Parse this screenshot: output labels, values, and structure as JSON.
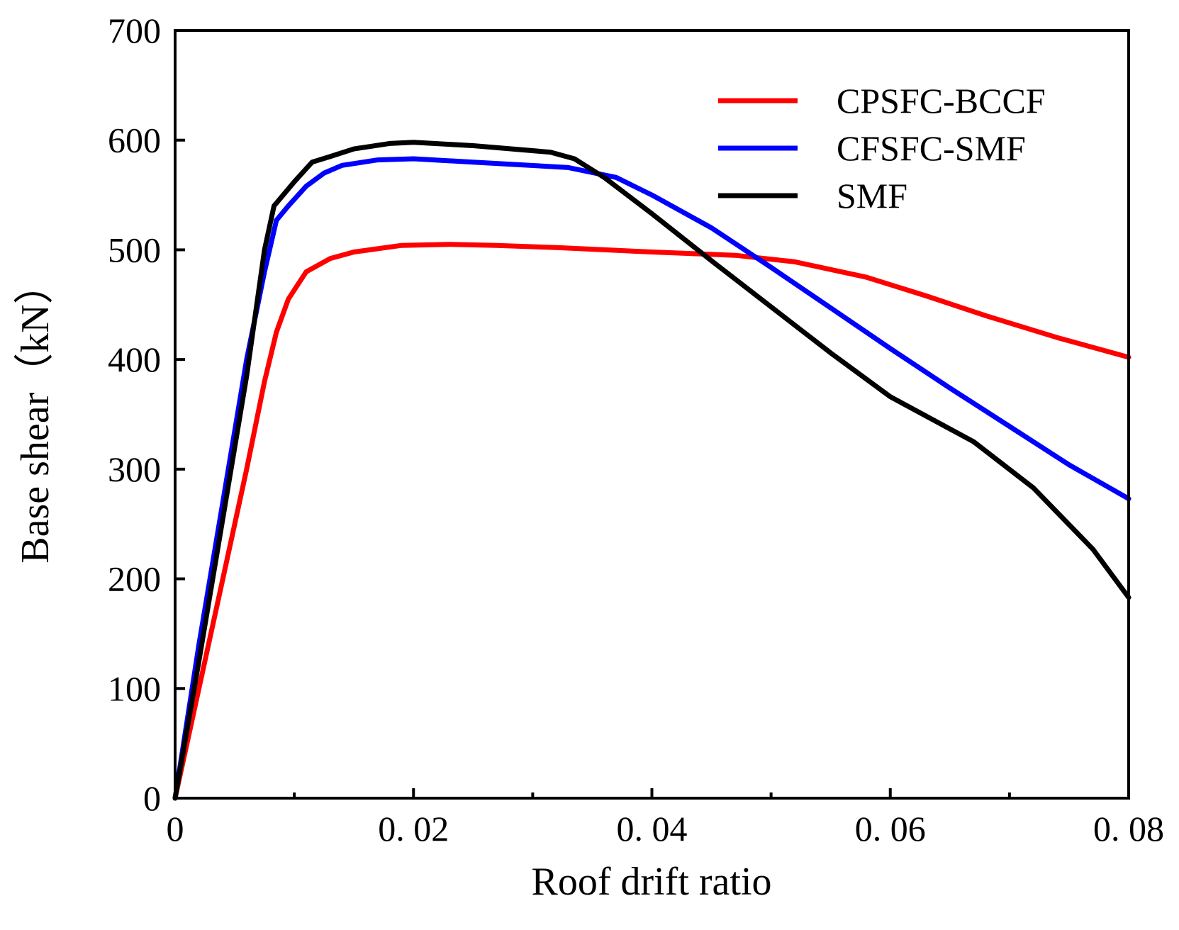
{
  "chart_data": {
    "type": "line",
    "title": "",
    "xlabel": "Roof drift ratio",
    "ylabel": "Base shear（kN）",
    "xlim": [
      0,
      0.08
    ],
    "ylim": [
      0,
      700
    ],
    "xticks": [
      0,
      0.02,
      0.04,
      0.06,
      0.08
    ],
    "xtick_labels": [
      "0",
      "0. 02",
      "0. 04",
      "0. 06",
      "0. 08"
    ],
    "yticks": [
      0,
      100,
      200,
      300,
      400,
      500,
      600,
      700
    ],
    "ytick_labels": [
      "0",
      "100",
      "200",
      "300",
      "400",
      "500",
      "600",
      "700"
    ],
    "grid": false,
    "legend_position": "top-right",
    "series": [
      {
        "name": "CPSFC-BCCF",
        "color": "#ff0000",
        "points": [
          [
            0,
            0
          ],
          [
            0.002,
            100
          ],
          [
            0.004,
            200
          ],
          [
            0.006,
            300
          ],
          [
            0.0075,
            380
          ],
          [
            0.0085,
            425
          ],
          [
            0.0095,
            455
          ],
          [
            0.011,
            480
          ],
          [
            0.013,
            492
          ],
          [
            0.015,
            498
          ],
          [
            0.019,
            504
          ],
          [
            0.023,
            505
          ],
          [
            0.027,
            504
          ],
          [
            0.032,
            502
          ],
          [
            0.04,
            498
          ],
          [
            0.047,
            495
          ],
          [
            0.052,
            489
          ],
          [
            0.058,
            475
          ],
          [
            0.063,
            458
          ],
          [
            0.068,
            440
          ],
          [
            0.074,
            420
          ],
          [
            0.08,
            402
          ]
        ]
      },
      {
        "name": "CFSFC-SMF",
        "color": "#0000ff",
        "points": [
          [
            0,
            0
          ],
          [
            0.002,
            140
          ],
          [
            0.004,
            270
          ],
          [
            0.006,
            400
          ],
          [
            0.0075,
            480
          ],
          [
            0.0085,
            527
          ],
          [
            0.0095,
            540
          ],
          [
            0.011,
            558
          ],
          [
            0.0125,
            570
          ],
          [
            0.014,
            577
          ],
          [
            0.017,
            582
          ],
          [
            0.02,
            583
          ],
          [
            0.025,
            580
          ],
          [
            0.033,
            575
          ],
          [
            0.037,
            566
          ],
          [
            0.04,
            550
          ],
          [
            0.045,
            520
          ],
          [
            0.05,
            484
          ],
          [
            0.055,
            447
          ],
          [
            0.06,
            410
          ],
          [
            0.065,
            374
          ],
          [
            0.07,
            339
          ],
          [
            0.075,
            304
          ],
          [
            0.08,
            273
          ]
        ]
      },
      {
        "name": "SMF",
        "color": "#000000",
        "points": [
          [
            0,
            0
          ],
          [
            0.002,
            125
          ],
          [
            0.004,
            255
          ],
          [
            0.006,
            385
          ],
          [
            0.0075,
            500
          ],
          [
            0.0083,
            540
          ],
          [
            0.01,
            562
          ],
          [
            0.0115,
            580
          ],
          [
            0.013,
            585
          ],
          [
            0.015,
            592
          ],
          [
            0.018,
            597
          ],
          [
            0.02,
            598
          ],
          [
            0.025,
            595
          ],
          [
            0.0315,
            589
          ],
          [
            0.0335,
            583
          ],
          [
            0.036,
            566
          ],
          [
            0.04,
            533
          ],
          [
            0.045,
            490
          ],
          [
            0.05,
            448
          ],
          [
            0.055,
            406
          ],
          [
            0.06,
            366
          ],
          [
            0.067,
            325
          ],
          [
            0.072,
            283
          ],
          [
            0.077,
            227
          ],
          [
            0.08,
            183
          ]
        ]
      }
    ]
  }
}
